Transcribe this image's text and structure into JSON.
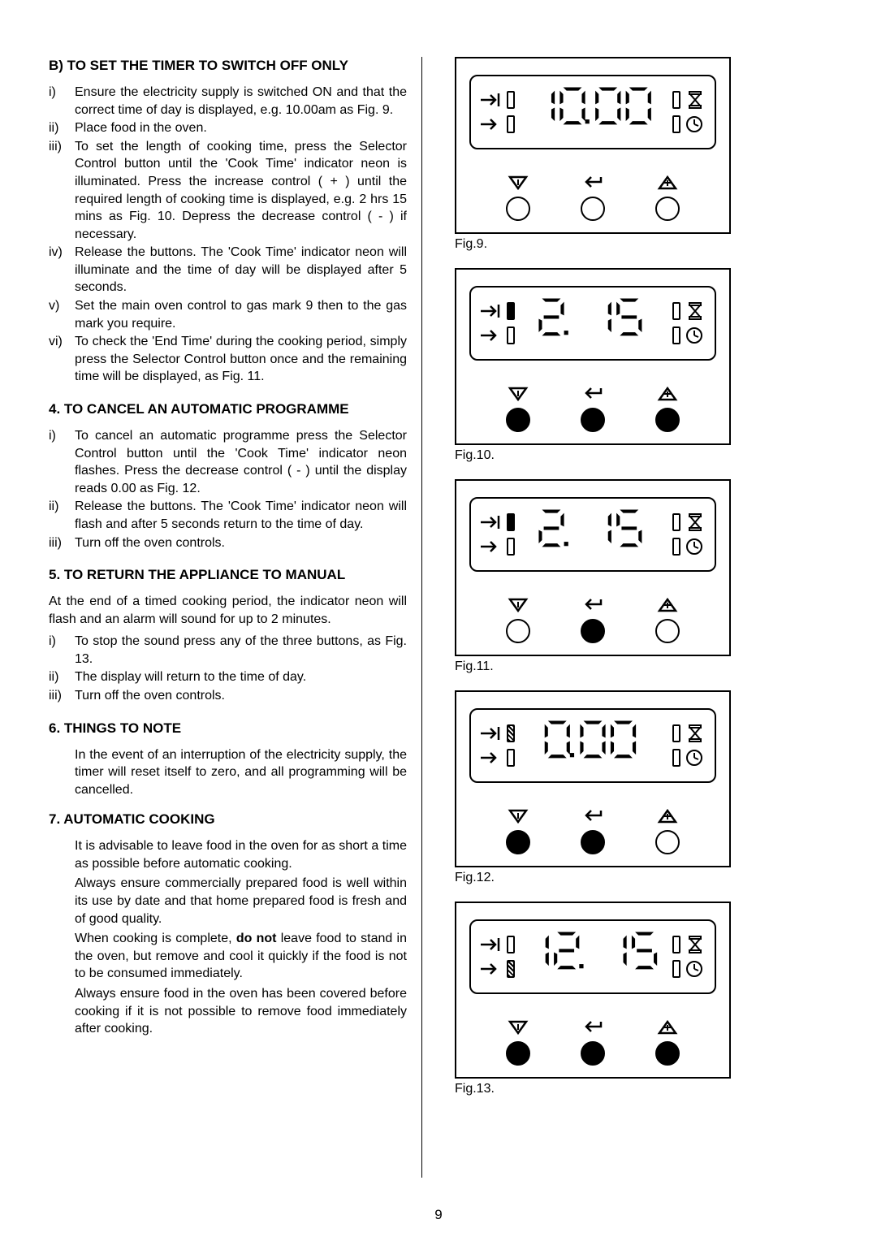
{
  "page_number": "9",
  "colors": {
    "text": "#000000",
    "bg": "#ffffff",
    "border": "#000000"
  },
  "left": {
    "section_b": {
      "heading": "B) TO SET THE TIMER TO SWITCH OFF ONLY",
      "items": [
        {
          "m": "i)",
          "t": "Ensure the electricity supply is switched ON and that the correct time of day is displayed, e.g. 10.00am as Fig. 9."
        },
        {
          "m": "ii)",
          "t": "Place food in the oven."
        },
        {
          "m": "iii)",
          "t": "To set the length of cooking time, press the Selector Control button until the 'Cook Time' indicator neon is illuminated.  Press the increase control ( + ) until the required length of cooking time is displayed, e.g. 2 hrs 15 mins as Fig. 10. Depress the decrease control ( - ) if necessary."
        },
        {
          "m": "iv)",
          "t": "Release the buttons. The 'Cook Time' indicator neon will illuminate and the time of day will be displayed after 5 seconds."
        },
        {
          "m": "v)",
          "t": "Set the main oven control to gas mark 9 then to the gas mark you require."
        },
        {
          "m": "vi)",
          "t": "To check the 'End Time' during the cooking period, simply press the Selector Control button once and the remaining time will be displayed, as Fig. 11."
        }
      ]
    },
    "section_4": {
      "heading": "4. TO CANCEL AN AUTOMATIC PROGRAMME",
      "items": [
        {
          "m": "i)",
          "t": "To cancel an automatic programme press the Selector Control button until the 'Cook Time' indicator neon flashes. Press the decrease control ( - ) until the display reads 0.00 as Fig. 12."
        },
        {
          "m": "ii)",
          "t": "Release the buttons. The 'Cook Time' indicator neon will flash and after 5 seconds return to the time of day."
        },
        {
          "m": "iii)",
          "t": "Turn off the oven controls."
        }
      ]
    },
    "section_5": {
      "heading": "5. TO RETURN THE APPLIANCE TO MANUAL",
      "intro": "At the end of a timed cooking period, the indicator neon will flash and an alarm will sound for up to 2 minutes.",
      "items": [
        {
          "m": "i)",
          "t": "To stop the sound press any of the three buttons, as Fig. 13."
        },
        {
          "m": "ii)",
          "t": "The display will return to the time of day."
        },
        {
          "m": "iii)",
          "t": "Turn off the oven controls."
        }
      ]
    },
    "section_6": {
      "heading": "6. THINGS TO NOTE",
      "para": "In the event of an interruption of the electricity supply, the timer will reset itself to zero, and all programming will be cancelled."
    },
    "section_7": {
      "heading": "7. AUTOMATIC COOKING",
      "p1": "It is advisable to leave food in the oven for as short a time as possible before automatic cooking.",
      "p2": "Always ensure commercially prepared food is well within its use by date and that home prepared food is fresh and of  good quality.",
      "p3_a": "When cooking is complete, ",
      "p3_b": "do not",
      "p3_c": " leave food to stand in the oven, but remove and cool it quickly if the food is not to be consumed immediately.",
      "p4": "Always ensure food in the oven has been covered before cooking if it is not possible to remove food immediately after cooking."
    }
  },
  "figures": [
    {
      "id": "fig9",
      "caption": "Fig.9.",
      "display": "10.00",
      "left1": "empty",
      "left2": "empty",
      "right1": "empty",
      "right2": "empty",
      "b1": "open",
      "b2": "open",
      "b3": "open"
    },
    {
      "id": "fig10",
      "caption": "Fig.10.",
      "display": "2. 15",
      "left1": "filled",
      "left2": "empty",
      "right1": "empty",
      "right2": "empty",
      "b1": "filled",
      "b2": "filled",
      "b3": "filled"
    },
    {
      "id": "fig11",
      "caption": "Fig.11.",
      "display": "2. 15",
      "left1": "filled",
      "left2": "empty",
      "right1": "empty",
      "right2": "empty",
      "b1": "open",
      "b2": "filled",
      "b3": "open"
    },
    {
      "id": "fig12",
      "caption": "Fig.12.",
      "display": "0.00",
      "left1": "hatched",
      "left2": "empty",
      "right1": "empty",
      "right2": "empty",
      "b1": "filled",
      "b2": "filled",
      "b3": "open"
    },
    {
      "id": "fig13",
      "caption": "Fig.13.",
      "display": "12. 15",
      "left1": "empty",
      "left2": "hatched",
      "right1": "empty",
      "right2": "empty",
      "b1": "filled",
      "b2": "filled",
      "b3": "filled"
    }
  ],
  "seven_seg": {
    "font_size": 44,
    "font_family": "monospace"
  }
}
